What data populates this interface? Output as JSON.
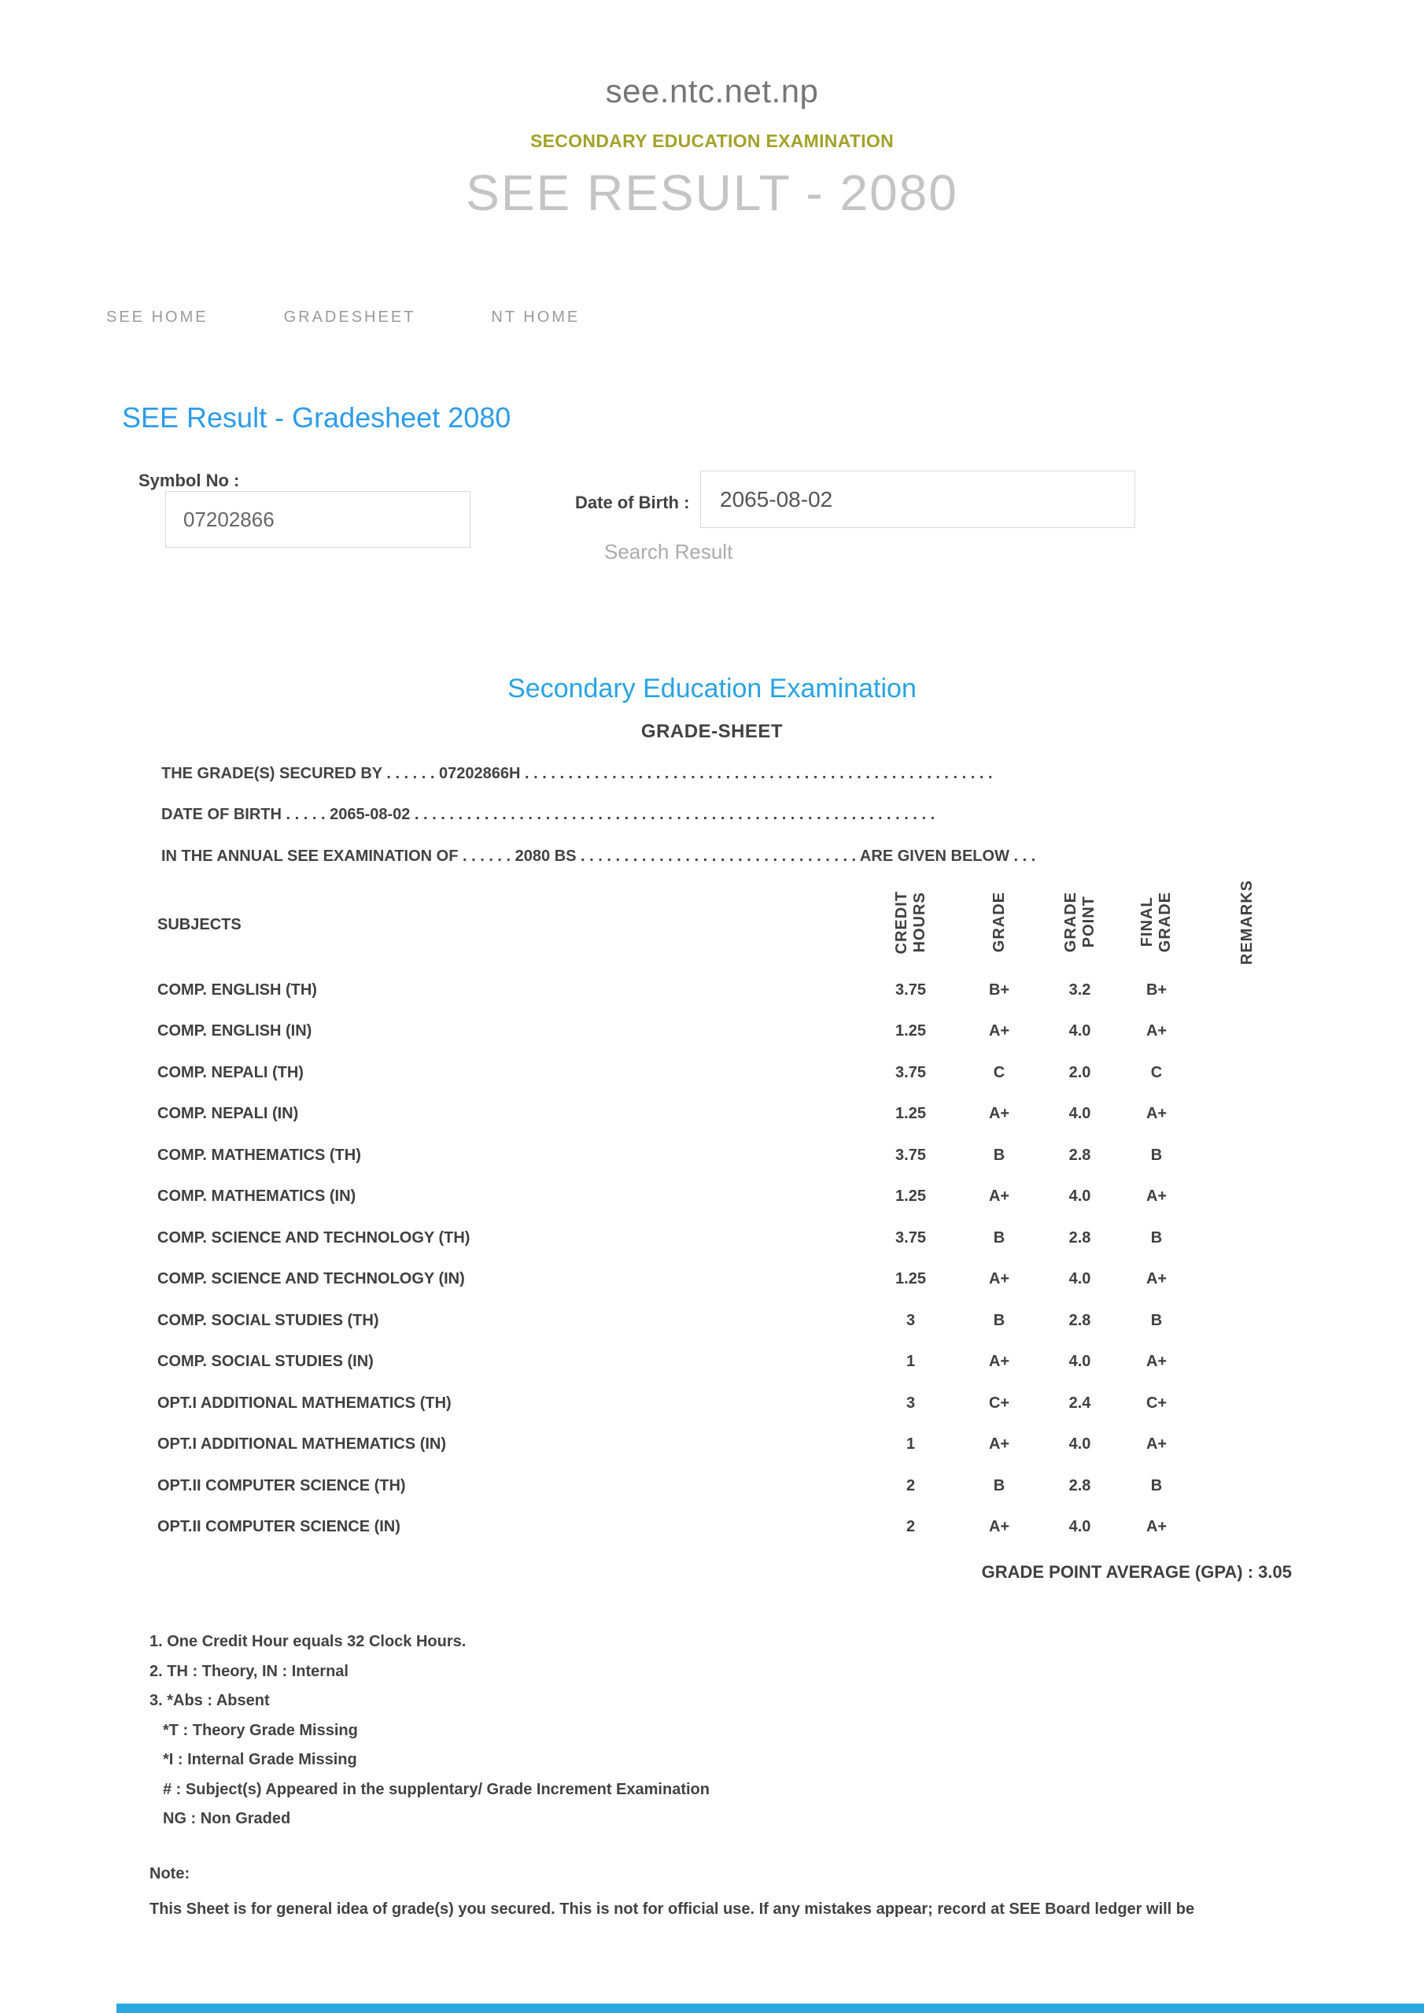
{
  "colors": {
    "accent_blue": "#2d9ce8",
    "heading_blue": "#29a3e3",
    "olive": "#a2a22b",
    "muted_gray": "#9b9b9b",
    "light_title_gray": "#c4c4c4",
    "text_dark": "#424242",
    "footer_blue": "#2aa9e1"
  },
  "header": {
    "site": "see.ntc.net.np",
    "subtitle": "SECONDARY EDUCATION EXAMINATION",
    "title": "SEE RESULT - 2080",
    "nav": [
      {
        "label": "SEE HOME"
      },
      {
        "label": "GRADESHEET"
      },
      {
        "label": "NT HOME"
      }
    ]
  },
  "search": {
    "heading": "SEE Result - Gradesheet 2080",
    "symbol_label": "Symbol No :",
    "symbol_value": "07202866",
    "dob_label": "Date of Birth :",
    "dob_value": "2065-08-02",
    "search_button": "Search Result"
  },
  "gradesheet": {
    "title": "Secondary Education Examination",
    "subtitle": "GRADE-SHEET",
    "line_secured_by": "THE GRADE(S) SECURED BY . . . . . . 07202866H . . . . . . . . . . . . . . . . . . . . . . . . . . . . . . . . . . . . . . . . . . . . . . . . . . . . . .",
    "line_dob": "DATE OF BIRTH . . . . . 2065-08-02 . . . . . . . . . . . . . . . . . . . . . . . . . . . . . . . . . . . . . . . . . . . . . . . . . . . . . . . . . . . .",
    "line_exam": "IN THE ANNUAL SEE EXAMINATION OF . . . . . . 2080 BS . . . . . . . . . . . . . . . . . . . . . . . . . . . . . . . . ARE GIVEN BELOW . . .",
    "table": {
      "headers": {
        "subjects": "SUBJECTS",
        "credit_hours": "CREDIT\nHOURS",
        "grade": "GRADE",
        "grade_point": "GRADE\nPOINT",
        "final_grade": "FINAL\nGRADE",
        "remarks": "REMARKS"
      },
      "rows": [
        {
          "subject": "COMP. ENGLISH (TH)",
          "credit": "3.75",
          "grade": "B+",
          "point": "3.2",
          "final": "B+",
          "remarks": ""
        },
        {
          "subject": "COMP. ENGLISH (IN)",
          "credit": "1.25",
          "grade": "A+",
          "point": "4.0",
          "final": "A+",
          "remarks": ""
        },
        {
          "subject": "COMP. NEPALI (TH)",
          "credit": "3.75",
          "grade": "C",
          "point": "2.0",
          "final": "C",
          "remarks": ""
        },
        {
          "subject": "COMP. NEPALI (IN)",
          "credit": "1.25",
          "grade": "A+",
          "point": "4.0",
          "final": "A+",
          "remarks": ""
        },
        {
          "subject": "COMP. MATHEMATICS (TH)",
          "credit": "3.75",
          "grade": "B",
          "point": "2.8",
          "final": "B",
          "remarks": ""
        },
        {
          "subject": "COMP. MATHEMATICS (IN)",
          "credit": "1.25",
          "grade": "A+",
          "point": "4.0",
          "final": "A+",
          "remarks": ""
        },
        {
          "subject": "COMP. SCIENCE AND TECHNOLOGY (TH)",
          "credit": "3.75",
          "grade": "B",
          "point": "2.8",
          "final": "B",
          "remarks": ""
        },
        {
          "subject": "COMP. SCIENCE AND TECHNOLOGY (IN)",
          "credit": "1.25",
          "grade": "A+",
          "point": "4.0",
          "final": "A+",
          "remarks": ""
        },
        {
          "subject": "COMP. SOCIAL STUDIES (TH)",
          "credit": "3",
          "grade": "B",
          "point": "2.8",
          "final": "B",
          "remarks": ""
        },
        {
          "subject": "COMP. SOCIAL STUDIES (IN)",
          "credit": "1",
          "grade": "A+",
          "point": "4.0",
          "final": "A+",
          "remarks": ""
        },
        {
          "subject": "OPT.I ADDITIONAL MATHEMATICS (TH)",
          "credit": "3",
          "grade": "C+",
          "point": "2.4",
          "final": "C+",
          "remarks": ""
        },
        {
          "subject": "OPT.I ADDITIONAL MATHEMATICS (IN)",
          "credit": "1",
          "grade": "A+",
          "point": "4.0",
          "final": "A+",
          "remarks": ""
        },
        {
          "subject": "OPT.II COMPUTER SCIENCE (TH)",
          "credit": "2",
          "grade": "B",
          "point": "2.8",
          "final": "B",
          "remarks": ""
        },
        {
          "subject": "OPT.II COMPUTER SCIENCE (IN)",
          "credit": "2",
          "grade": "A+",
          "point": "4.0",
          "final": "A+",
          "remarks": ""
        }
      ]
    },
    "gpa_line": "GRADE POINT AVERAGE (GPA) : 3.05"
  },
  "notes": {
    "line1": "1. One Credit Hour equals 32 Clock Hours.",
    "line2": "2. TH : Theory, IN : Internal",
    "line3": "3. *Abs : Absent",
    "sub1": "*T : Theory Grade Missing",
    "sub2": "*I : Internal Grade Missing",
    "sub3": "# : Subject(s) Appeared in the supplentary/ Grade Increment Examination",
    "sub4": "NG : Non Graded",
    "note_label": "Note:",
    "note_text": "This Sheet is for general idea of grade(s) you secured. This is not for official use. If any mistakes appear; record at SEE Board ledger will be"
  }
}
